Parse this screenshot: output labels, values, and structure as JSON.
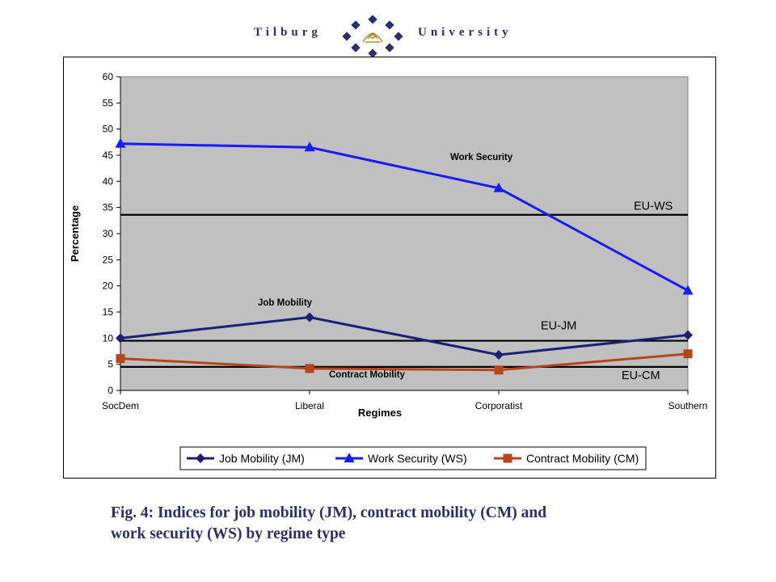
{
  "header": {
    "left_text": "Tilburg",
    "right_text": "University"
  },
  "caption": {
    "line1": "Fig. 4: Indices for job mobility (JM), contract mobility (CM) and",
    "line2": "work security (WS) by regime type"
  },
  "colors": {
    "plot_area": "#c0c0c0",
    "job_mobility": "#1e1e7a",
    "work_security": "#1a1aff",
    "contract_mobility": "#b5451b",
    "brand": "#2a2f6e"
  },
  "chart_data": {
    "type": "line",
    "title": "",
    "xlabel": "Regimes",
    "ylabel": "Percentage",
    "ylim": [
      0,
      60
    ],
    "yticks": [
      0,
      5,
      10,
      15,
      20,
      25,
      30,
      35,
      40,
      45,
      50,
      55,
      60
    ],
    "categories": [
      "SocDem",
      "Liberal",
      "Corporatist",
      "Southern"
    ],
    "series": [
      {
        "name": "Job Mobility (JM)",
        "values": [
          10,
          14,
          6.8,
          10.6
        ],
        "marker": "diamond",
        "color": "#1e1e7a"
      },
      {
        "name": "Work Security (WS)",
        "values": [
          47.2,
          46.5,
          38.7,
          19.1
        ],
        "marker": "triangle",
        "color": "#1a1aff"
      },
      {
        "name": "Contract Mobility (CM)",
        "values": [
          6.1,
          4.2,
          3.9,
          7
        ],
        "marker": "square",
        "color": "#b5451b"
      }
    ],
    "reference_lines": [
      {
        "name": "EU-WS",
        "value": 33.6
      },
      {
        "name": "EU-JM",
        "value": 9.5
      },
      {
        "name": "EU-CM",
        "value": 4.5
      }
    ],
    "annotations": [
      {
        "text": "Work Security"
      },
      {
        "text": "Job Mobility"
      },
      {
        "text": "Contract Mobility"
      }
    ],
    "grid": false,
    "legend_position": "bottom"
  }
}
